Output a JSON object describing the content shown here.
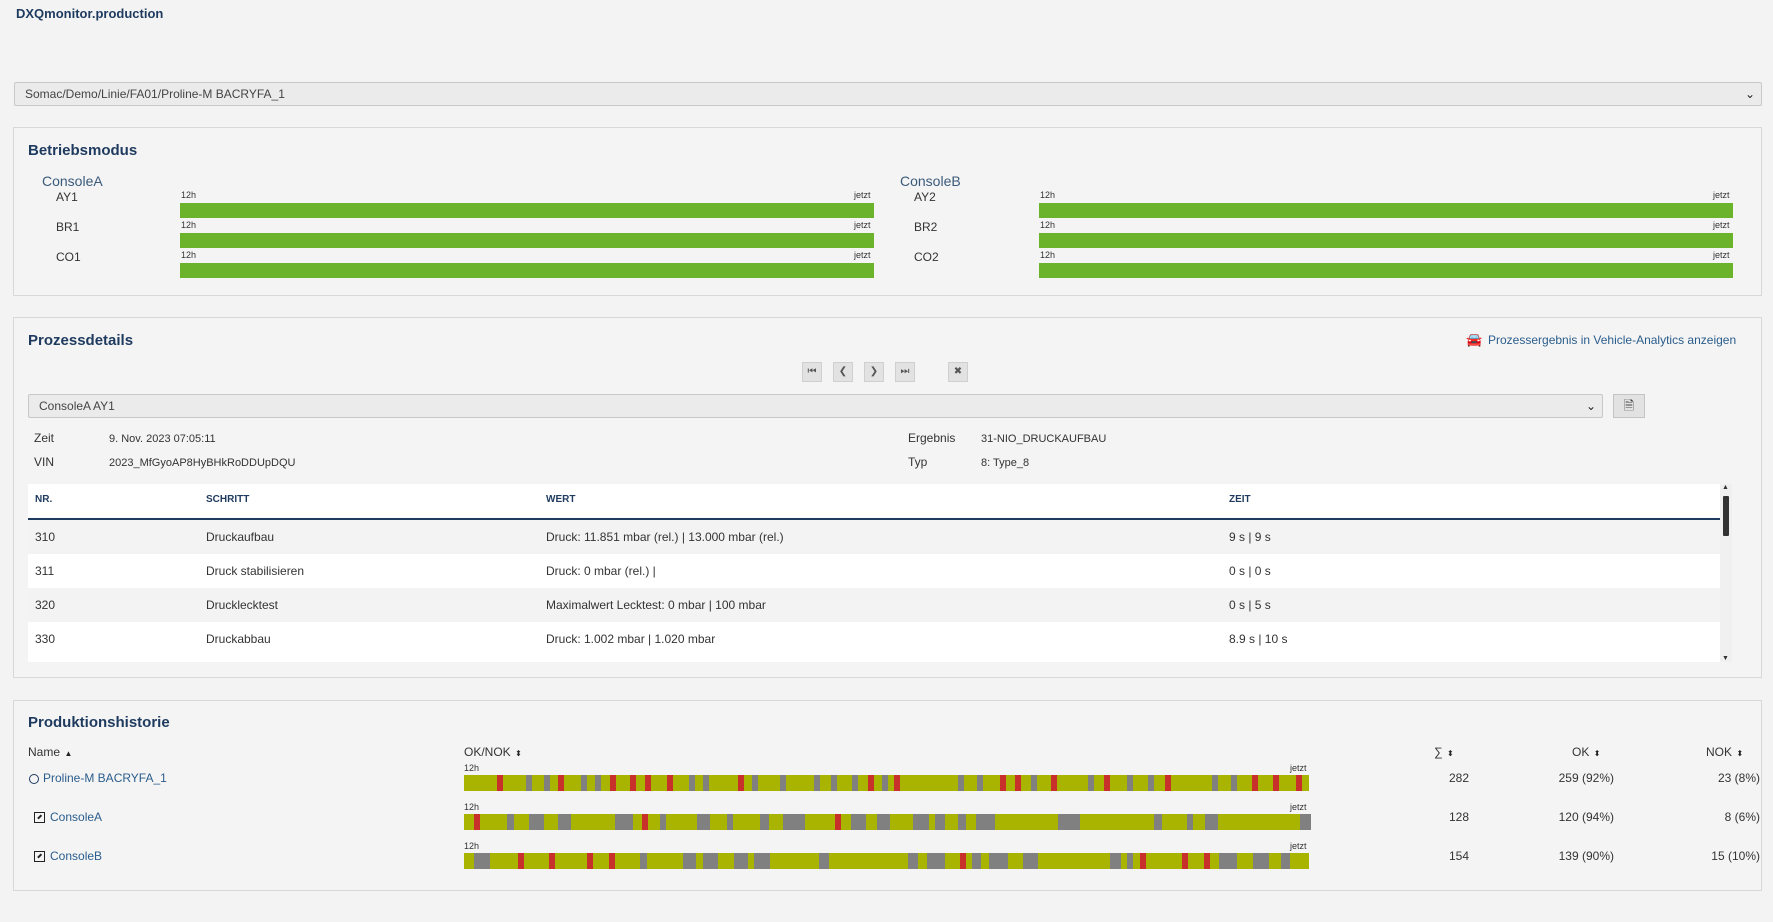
{
  "app_title": "DXQmonitor.production",
  "station_select": {
    "value": "Somac/Demo/Linie/FA01/Proline-M BACRYFA_1"
  },
  "betriebsmodus": {
    "title": "Betriebsmodus",
    "consoles": [
      {
        "name": "ConsoleA",
        "rows": [
          {
            "label": "AY1",
            "left": "12h",
            "right": "jetzt"
          },
          {
            "label": "BR1",
            "left": "12h",
            "right": "jetzt"
          },
          {
            "label": "CO1",
            "left": "12h",
            "right": "jetzt"
          }
        ]
      },
      {
        "name": "ConsoleB",
        "rows": [
          {
            "label": "AY2",
            "left": "12h",
            "right": "jetzt"
          },
          {
            "label": "BR2",
            "left": "12h",
            "right": "jetzt"
          },
          {
            "label": "CO2",
            "left": "12h",
            "right": "jetzt"
          }
        ]
      }
    ],
    "bar_color": "#6bb32a"
  },
  "prozessdetails": {
    "title": "Prozessdetails",
    "analytics_link": "Prozessergebnis in Vehicle-Analytics anzeigen",
    "select_value": "ConsoleA AY1",
    "meta": {
      "zeit_label": "Zeit",
      "zeit_value": "9. Nov. 2023 07:05:11",
      "vin_label": "VIN",
      "vin_value": "2023_MfGyoAP8HyBHkRoDDUpDQU",
      "ergebnis_label": "Ergebnis",
      "ergebnis_value": "31-NIO_DRUCKAUFBAU",
      "typ_label": "Typ",
      "typ_value": "8: Type_8"
    },
    "table": {
      "headers": [
        "NR.",
        "SCHRITT",
        "WERT",
        "ZEIT"
      ],
      "rows": [
        [
          "310",
          "Druckaufbau",
          "Druck: 11.851 mbar (rel.) | 13.000 mbar (rel.)",
          "9 s | 9 s"
        ],
        [
          "311",
          "Druck stabilisieren",
          "Druck: 0 mbar (rel.) |",
          "0 s | 0 s"
        ],
        [
          "320",
          "Drucklecktest",
          "Maximalwert Lecktest: 0 mbar | 100 mbar",
          "0 s | 5 s"
        ],
        [
          "330",
          "Druckabbau",
          "Druck: 1.002 mbar | 1.020 mbar",
          "8.9 s | 10 s"
        ]
      ]
    }
  },
  "produktionshistorie": {
    "title": "Produktionshistorie",
    "headers": {
      "name": "Name",
      "oknok": "OK/NOK",
      "sum": "∑",
      "ok": "OK",
      "nok": "NOK"
    },
    "strip_left": "12h",
    "strip_right": "jetzt",
    "colors": {
      "ok": "#a8b400",
      "nok": "#c8302c",
      "idle": "#808080"
    },
    "rows": [
      {
        "name": "Proline-M BACRYFA_1",
        "sum": "282",
        "ok": "259 (92%)",
        "nok": "23 (8%)"
      },
      {
        "name": "ConsoleA",
        "sum": "128",
        "ok": "120 (94%)",
        "nok": "8 (6%)"
      },
      {
        "name": "ConsoleB",
        "sum": "154",
        "ok": "139 (90%)",
        "nok": "15 (10%)"
      }
    ]
  }
}
